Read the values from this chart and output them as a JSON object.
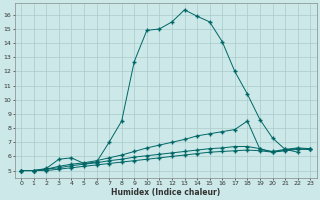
{
  "xlabel": "Humidex (Indice chaleur)",
  "background_color": "#cce8e8",
  "grid_color": "#aacccc",
  "line_color": "#006666",
  "xlim": [
    -0.5,
    23.5
  ],
  "ylim": [
    4.5,
    16.8
  ],
  "xticks": [
    0,
    1,
    2,
    3,
    4,
    5,
    6,
    7,
    8,
    9,
    10,
    11,
    12,
    13,
    14,
    15,
    16,
    17,
    18,
    19,
    20,
    21,
    22,
    23
  ],
  "yticks": [
    5,
    6,
    7,
    8,
    9,
    10,
    11,
    12,
    13,
    14,
    15,
    16
  ],
  "line1_x": [
    0,
    1,
    2,
    3,
    4,
    5,
    6,
    7,
    8,
    9,
    10,
    11,
    12,
    13,
    14,
    15,
    16,
    17,
    18,
    19,
    20,
    21,
    22
  ],
  "line1_y": [
    5.0,
    5.0,
    5.15,
    5.8,
    5.9,
    5.5,
    5.6,
    7.0,
    8.5,
    12.7,
    14.9,
    15.0,
    15.5,
    16.35,
    15.9,
    15.5,
    14.1,
    12.0,
    10.4,
    8.6,
    7.3,
    6.5,
    6.3
  ],
  "line2_x": [
    0,
    1,
    2,
    3,
    4,
    5,
    6,
    7,
    8,
    9,
    10,
    11,
    12,
    13,
    14,
    15,
    16,
    17,
    18,
    19,
    20,
    21,
    22,
    23
  ],
  "line2_y": [
    5.0,
    5.0,
    5.1,
    5.3,
    5.45,
    5.55,
    5.7,
    5.9,
    6.1,
    6.35,
    6.6,
    6.8,
    7.0,
    7.2,
    7.45,
    7.6,
    7.75,
    7.9,
    8.5,
    6.5,
    6.35,
    6.5,
    6.6,
    6.55
  ],
  "line3_x": [
    0,
    1,
    2,
    3,
    4,
    5,
    6,
    7,
    8,
    9,
    10,
    11,
    12,
    13,
    14,
    15,
    16,
    17,
    18,
    19,
    20,
    21,
    22,
    23
  ],
  "line3_y": [
    5.0,
    5.0,
    5.1,
    5.2,
    5.35,
    5.45,
    5.55,
    5.7,
    5.8,
    5.95,
    6.05,
    6.15,
    6.25,
    6.35,
    6.45,
    6.55,
    6.6,
    6.7,
    6.7,
    6.55,
    6.3,
    6.45,
    6.55,
    6.5
  ],
  "line4_x": [
    0,
    1,
    2,
    3,
    4,
    5,
    6,
    7,
    8,
    9,
    10,
    11,
    12,
    13,
    14,
    15,
    16,
    17,
    18,
    19,
    20,
    21,
    22,
    23
  ],
  "line4_y": [
    5.0,
    5.0,
    5.0,
    5.1,
    5.2,
    5.3,
    5.4,
    5.5,
    5.6,
    5.7,
    5.8,
    5.9,
    6.0,
    6.1,
    6.2,
    6.3,
    6.35,
    6.4,
    6.45,
    6.4,
    6.3,
    6.4,
    6.5,
    6.5
  ]
}
